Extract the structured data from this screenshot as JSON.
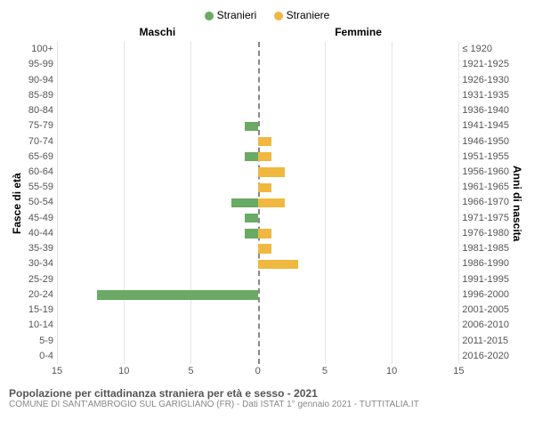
{
  "legend": {
    "male": {
      "label": "Stranieri",
      "color": "#6aaa64"
    },
    "female": {
      "label": "Straniere",
      "color": "#f0b840"
    }
  },
  "headers": {
    "left": "Maschi",
    "right": "Femmine"
  },
  "y_axis_left": "Fasce di età",
  "y_axis_right": "Anni di nascita",
  "x_axis": {
    "max": 15,
    "ticks": [
      15,
      10,
      5,
      0,
      5,
      10,
      15
    ]
  },
  "footer_title": "Popolazione per cittadinanza straniera per età e sesso - 2021",
  "footer_sub": "COMUNE DI SANT'AMBROGIO SUL GARIGLIANO (FR) - Dati ISTAT 1° gennaio 2021 - TUTTITALIA.IT",
  "styling": {
    "background": "#ffffff",
    "grid_color": "#e5e5e5",
    "text_color": "#555555",
    "center_line_color": "#888888"
  },
  "age_groups": [
    {
      "age": "100+",
      "birth": "≤ 1920",
      "m": 0,
      "f": 0
    },
    {
      "age": "95-99",
      "birth": "1921-1925",
      "m": 0,
      "f": 0
    },
    {
      "age": "90-94",
      "birth": "1926-1930",
      "m": 0,
      "f": 0
    },
    {
      "age": "85-89",
      "birth": "1931-1935",
      "m": 0,
      "f": 0
    },
    {
      "age": "80-84",
      "birth": "1936-1940",
      "m": 0,
      "f": 0
    },
    {
      "age": "75-79",
      "birth": "1941-1945",
      "m": 1,
      "f": 0
    },
    {
      "age": "70-74",
      "birth": "1946-1950",
      "m": 0,
      "f": 1
    },
    {
      "age": "65-69",
      "birth": "1951-1955",
      "m": 1,
      "f": 1
    },
    {
      "age": "60-64",
      "birth": "1956-1960",
      "m": 0,
      "f": 2
    },
    {
      "age": "55-59",
      "birth": "1961-1965",
      "m": 0,
      "f": 1
    },
    {
      "age": "50-54",
      "birth": "1966-1970",
      "m": 2,
      "f": 2
    },
    {
      "age": "45-49",
      "birth": "1971-1975",
      "m": 1,
      "f": 0
    },
    {
      "age": "40-44",
      "birth": "1976-1980",
      "m": 1,
      "f": 1
    },
    {
      "age": "35-39",
      "birth": "1981-1985",
      "m": 0,
      "f": 1
    },
    {
      "age": "30-34",
      "birth": "1986-1990",
      "m": 0,
      "f": 3
    },
    {
      "age": "25-29",
      "birth": "1991-1995",
      "m": 0,
      "f": 0
    },
    {
      "age": "20-24",
      "birth": "1996-2000",
      "m": 12,
      "f": 0
    },
    {
      "age": "15-19",
      "birth": "2001-2005",
      "m": 0,
      "f": 0
    },
    {
      "age": "10-14",
      "birth": "2006-2010",
      "m": 0,
      "f": 0
    },
    {
      "age": "5-9",
      "birth": "2011-2015",
      "m": 0,
      "f": 0
    },
    {
      "age": "0-4",
      "birth": "2016-2020",
      "m": 0,
      "f": 0
    }
  ]
}
